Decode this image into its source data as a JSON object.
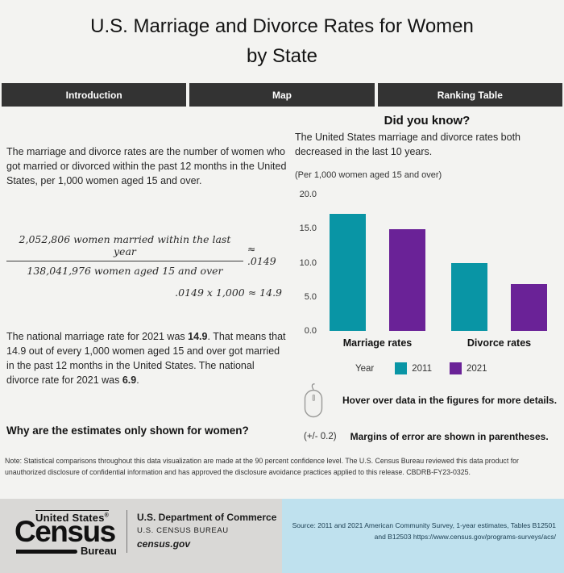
{
  "page": {
    "title_line1": "U.S. Marriage and Divorce Rates for Women",
    "title_line2": "by State"
  },
  "tabs": [
    {
      "label": "Introduction"
    },
    {
      "label": "Map"
    },
    {
      "label": "Ranking Table"
    }
  ],
  "intro": {
    "paragraph1": "The marriage and divorce rates are the number of women who got married or divorced within the past 12 months in the United States, per 1,000 women aged 15 and over.",
    "formula": {
      "numerator": "2,052,806 women married within the last year",
      "denominator": "138,041,976 women aged 15 and over",
      "result": "≈ .0149",
      "line2": ".0149 x 1,000 ≈ 14.9"
    },
    "p2_a": "The national marriage rate for 2021 was ",
    "p2_b1": "14.9",
    "p2_c": ". That means that 14.9 out of every 1,000 women aged 15 and over got married in the past 12 months in the United States. The national divorce rate for 2021 was ",
    "p2_b2": "6.9",
    "p2_d": ".",
    "question": "Why are the estimates only shown for women?"
  },
  "did_you_know": {
    "heading": "Did you know?",
    "text": "The United States marriage and divorce rates both decreased in the last 10 years.",
    "unit_note": "(Per 1,000 women aged 15 and over)"
  },
  "chart_data": {
    "type": "bar",
    "title": "Did you know?",
    "subtitle": "The United States marriage and divorce rates both decreased in the last 10 years.",
    "unit_label": "(Per 1,000 women aged 15 and over)",
    "categories": [
      "Marriage rates",
      "Divorce rates"
    ],
    "series": [
      {
        "name": "2011",
        "color": "#0995a5",
        "values": [
          17.2,
          10.0
        ]
      },
      {
        "name": "2021",
        "color": "#6a2297",
        "values": [
          14.9,
          6.9
        ]
      }
    ],
    "ylim": [
      0,
      20
    ],
    "yticks": [
      "20.0",
      "15.0",
      "10.0",
      "5.0",
      "0.0"
    ],
    "grid": false,
    "legend_label": "Year",
    "legend_position": "bottom"
  },
  "hints": {
    "hover": "Hover over data in the figures for more details.",
    "moe_example": "(+/- 0.2)",
    "moe_text": "Margins of error are shown in parentheses."
  },
  "note": "Note: Statistical comparisons throughout this data visualization are made at the 90 percent confidence level. The U.S. Census Bureau reviewed this data product for unauthorized disclosure of confidential information and has approved the disclosure avoidance practices applied to this release. CBDRB-FY23-0325.",
  "footer": {
    "logo": {
      "top": "United States",
      "reg": "®",
      "main": "Census",
      "bottom": "Bureau"
    },
    "dept_line1": "U.S. Department of Commerce",
    "dept_line2": "U.S. CENSUS BUREAU",
    "dept_line3": "census.gov",
    "source": "Source: 2011 and 2021 American Community Survey, 1-year estimates, Tables B12501 and B12503 https://www.census.gov/programs-surveys/acs/"
  },
  "colors": {
    "teal_2011": "#0995a5",
    "purple_2021": "#6a2297",
    "tab_background": "#333333",
    "footer_left_background": "#d9d8d6",
    "footer_right_background": "#bfe1ee"
  }
}
